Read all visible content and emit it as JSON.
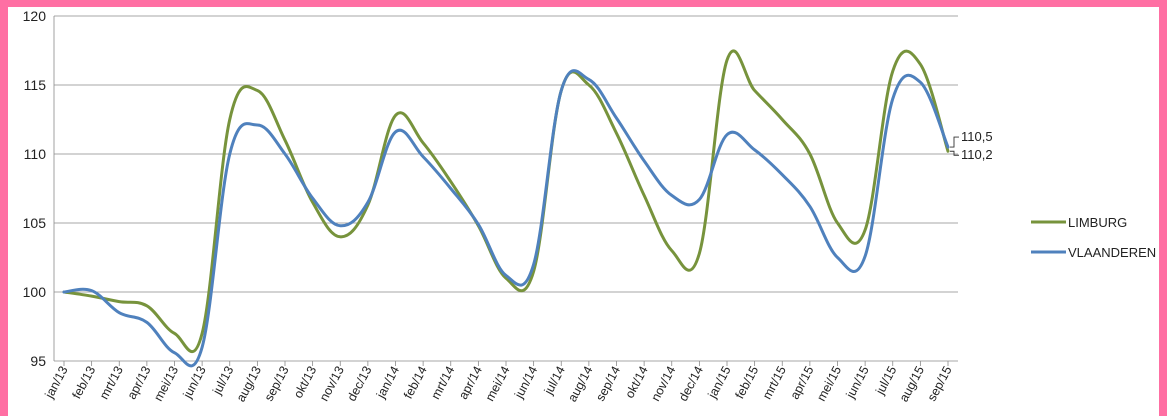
{
  "chart_data": {
    "type": "line",
    "title": "",
    "xlabel": "",
    "ylabel": "",
    "ylim": [
      95,
      120
    ],
    "yticks": [
      95,
      100,
      105,
      110,
      115,
      120
    ],
    "grid": true,
    "legend_position": "right",
    "categories": [
      "jan/13",
      "feb/13",
      "mrt/13",
      "apr/13",
      "mei/13",
      "jun/13",
      "jul/13",
      "aug/13",
      "sep/13",
      "okt/13",
      "nov/13",
      "dec/13",
      "jan/14",
      "feb/14",
      "mrt/14",
      "apr/14",
      "mei/14",
      "jun/14",
      "jul/14",
      "aug/14",
      "sep/14",
      "okt/14",
      "nov/14",
      "dec/14",
      "jan/15",
      "feb/15",
      "mrt/15",
      "apr/15",
      "mei/15",
      "jun/15",
      "jul/15",
      "aug/15",
      "sep/15"
    ],
    "series": [
      {
        "name": "LIMBURG",
        "color": "#77933c",
        "values": [
          100.0,
          99.7,
          99.3,
          99.0,
          97.0,
          97.0,
          112.5,
          114.6,
          111.0,
          106.5,
          104.0,
          106.3,
          112.8,
          110.8,
          108.0,
          104.8,
          101.0,
          101.5,
          114.6,
          115.0,
          111.5,
          107.0,
          103.0,
          102.8,
          116.8,
          114.6,
          112.5,
          110.0,
          105.0,
          104.5,
          116.0,
          116.5,
          110.2
        ]
      },
      {
        "name": "VLAANDEREN",
        "color": "#4f81bd",
        "values": [
          100.0,
          100.1,
          98.5,
          97.8,
          95.6,
          96.0,
          110.0,
          112.1,
          110.0,
          106.8,
          104.8,
          106.5,
          111.6,
          109.8,
          107.5,
          104.9,
          101.2,
          102.0,
          114.6,
          115.4,
          112.6,
          109.5,
          107.0,
          106.7,
          111.4,
          110.3,
          108.5,
          106.2,
          102.5,
          102.6,
          114.0,
          115.2,
          110.5
        ]
      }
    ],
    "end_labels": [
      "110,5",
      "110,2"
    ]
  }
}
